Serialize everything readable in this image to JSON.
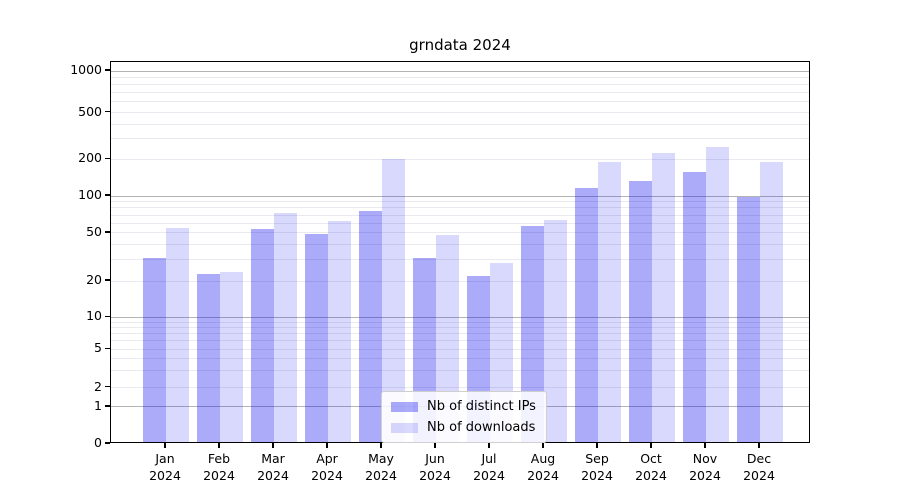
{
  "title": "grndata 2024",
  "chart_data": {
    "type": "bar",
    "title": "grndata 2024",
    "categories": [
      "Jan 2024",
      "Feb 2024",
      "Mar 2024",
      "Apr 2024",
      "May 2024",
      "Jun 2024",
      "Jul 2024",
      "Aug 2024",
      "Sep 2024",
      "Oct 2024",
      "Nov 2024",
      "Dec 2024"
    ],
    "series": [
      {
        "name": "Nb of distinct IPs",
        "color": "rgba(15,15,240,0.35)",
        "values": [
          30,
          22,
          52,
          47,
          73,
          30,
          21,
          55,
          111,
          127,
          153,
          94
        ]
      },
      {
        "name": "Nb of downloads",
        "color": "rgba(15,15,240,0.155)",
        "values": [
          53,
          23,
          70,
          60,
          195,
          46,
          27,
          62,
          182,
          216,
          243,
          184
        ]
      }
    ],
    "xlabel": "",
    "ylabel": "",
    "ylim": [
      0,
      1000
    ],
    "y_ticks": [
      0,
      1,
      2,
      5,
      10,
      20,
      50,
      100,
      200,
      500,
      1000
    ],
    "y_tick_labels": [
      "0",
      "1",
      "2",
      "5",
      "10",
      "20",
      "50",
      "100",
      "200",
      "500",
      "1000"
    ],
    "yscale": "log-like with zero baseline",
    "grid": "major dark at 1,10,100,1000; minor light at 2-9 per decade",
    "legend_position": "lower center"
  },
  "colors": {
    "bar_distinct_ips": "rgba(15,15,240,0.35)",
    "bar_downloads": "rgba(15,15,240,0.155)",
    "grid_major": "#b3b3b3",
    "grid_minor": "#e9e9ef",
    "spine": "#000000",
    "legend_border": "#cfcfcf"
  }
}
